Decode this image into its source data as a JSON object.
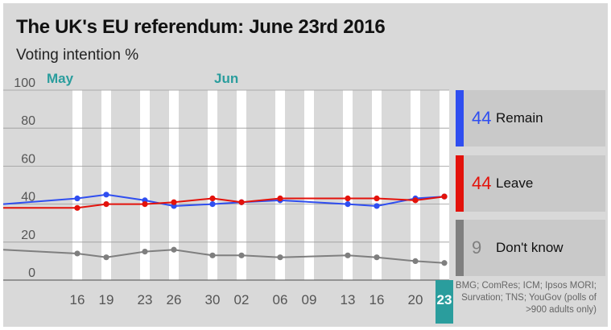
{
  "title": "The UK's EU referendum: June 23rd 2016",
  "subtitle": "Voting intention %",
  "months": [
    "May",
    "Jun"
  ],
  "colors": {
    "remain": "#2f4ef0",
    "leave": "#e3120b",
    "dont_know": "#7f7f7f",
    "accent": "#2a9d9d"
  },
  "legend": [
    {
      "value": "44",
      "label": "Remain"
    },
    {
      "value": "44",
      "label": "Leave"
    },
    {
      "value": "9",
      "label": "Don't know"
    }
  ],
  "source": "BMG; ComRes; ICM; Ipsos MORI; Survation; TNS; YouGov (polls of >900 adults only)",
  "chart_data": {
    "type": "line",
    "title": "The UK's EU referendum: June 23rd 2016",
    "subtitle": "Voting intention %",
    "ylim": [
      0,
      100
    ],
    "yticks": [
      0,
      20,
      40,
      60,
      80,
      100
    ],
    "x_date_range": [
      "2016-05-13",
      "2016-06-24"
    ],
    "xtick_dates": [
      {
        "date": "2016-05-16",
        "label": "16"
      },
      {
        "date": "2016-05-19",
        "label": "19"
      },
      {
        "date": "2016-05-23",
        "label": "23"
      },
      {
        "date": "2016-05-26",
        "label": "26"
      },
      {
        "date": "2016-05-30",
        "label": "30"
      },
      {
        "date": "2016-06-02",
        "label": "02"
      },
      {
        "date": "2016-06-06",
        "label": "06"
      },
      {
        "date": "2016-06-09",
        "label": "09"
      },
      {
        "date": "2016-06-13",
        "label": "13"
      },
      {
        "date": "2016-06-16",
        "label": "16"
      },
      {
        "date": "2016-06-20",
        "label": "20"
      },
      {
        "date": "2016-06-23",
        "label": "23",
        "highlight": true
      }
    ],
    "stripe_weeks": [
      [
        "2016-05-16",
        "2016-05-17"
      ],
      [
        "2016-05-19",
        "2016-05-20"
      ],
      [
        "2016-05-23",
        "2016-05-24"
      ],
      [
        "2016-05-26",
        "2016-05-27"
      ],
      [
        "2016-05-30",
        "2016-05-31"
      ],
      [
        "2016-06-02",
        "2016-06-03"
      ],
      [
        "2016-06-06",
        "2016-06-07"
      ],
      [
        "2016-06-09",
        "2016-06-10"
      ],
      [
        "2016-06-13",
        "2016-06-14"
      ],
      [
        "2016-06-16",
        "2016-06-17"
      ],
      [
        "2016-06-20",
        "2016-06-21"
      ],
      [
        "2016-06-23",
        "2016-06-24"
      ]
    ],
    "series": [
      {
        "name": "Remain",
        "color": "#2f4ef0",
        "points": [
          [
            "2016-05-13",
            40
          ],
          [
            "2016-05-16",
            43
          ],
          [
            "2016-05-19",
            45
          ],
          [
            "2016-05-23",
            42
          ],
          [
            "2016-05-26",
            39
          ],
          [
            "2016-05-30",
            40
          ],
          [
            "2016-06-02",
            41
          ],
          [
            "2016-06-06",
            42
          ],
          [
            "2016-06-13",
            40
          ],
          [
            "2016-06-16",
            39
          ],
          [
            "2016-06-20",
            43
          ],
          [
            "2016-06-23",
            44
          ]
        ]
      },
      {
        "name": "Leave",
        "color": "#e3120b",
        "points": [
          [
            "2016-05-13",
            38
          ],
          [
            "2016-05-16",
            38
          ],
          [
            "2016-05-19",
            40
          ],
          [
            "2016-05-23",
            40
          ],
          [
            "2016-05-26",
            41
          ],
          [
            "2016-05-30",
            43
          ],
          [
            "2016-06-02",
            41
          ],
          [
            "2016-06-06",
            43
          ],
          [
            "2016-06-13",
            43
          ],
          [
            "2016-06-16",
            43
          ],
          [
            "2016-06-20",
            42
          ],
          [
            "2016-06-23",
            44
          ]
        ]
      },
      {
        "name": "Don't know",
        "color": "#7f7f7f",
        "points": [
          [
            "2016-05-13",
            16
          ],
          [
            "2016-05-16",
            14
          ],
          [
            "2016-05-19",
            12
          ],
          [
            "2016-05-23",
            15
          ],
          [
            "2016-05-26",
            16
          ],
          [
            "2016-05-30",
            13
          ],
          [
            "2016-06-02",
            13
          ],
          [
            "2016-06-06",
            12
          ],
          [
            "2016-06-13",
            13
          ],
          [
            "2016-06-16",
            12
          ],
          [
            "2016-06-20",
            10
          ],
          [
            "2016-06-23",
            9
          ]
        ]
      }
    ]
  }
}
